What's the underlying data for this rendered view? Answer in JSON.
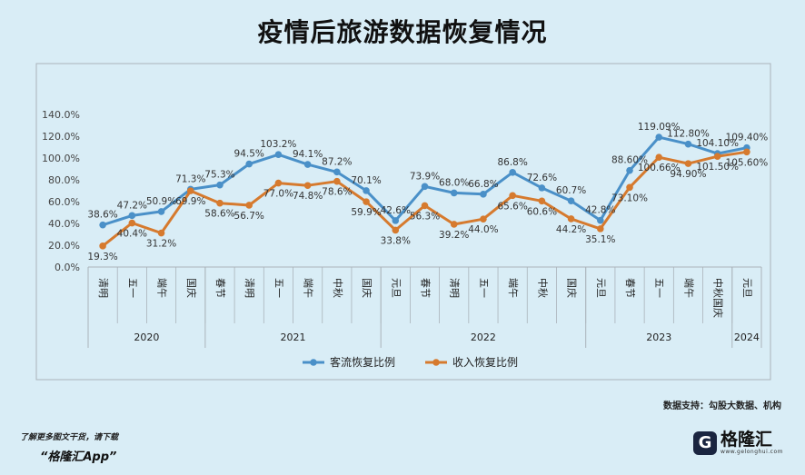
{
  "page": {
    "title": "疫情后旅游数据恢复情况"
  },
  "chart_data": {
    "type": "line",
    "title": "疫情后旅游数据恢复情况",
    "categories": [
      "清明",
      "五一",
      "端午",
      "国庆",
      "春节",
      "清明",
      "五一",
      "端午",
      "中秋",
      "国庆",
      "元旦",
      "春节",
      "清明",
      "五一",
      "端午",
      "中秋",
      "国庆",
      "元旦",
      "春节",
      "五一",
      "端午",
      "中秋国庆",
      "元旦"
    ],
    "years": [
      {
        "label": "2020",
        "start": 0,
        "end": 3
      },
      {
        "label": "2021",
        "start": 4,
        "end": 9
      },
      {
        "label": "2022",
        "start": 10,
        "end": 16
      },
      {
        "label": "2023",
        "start": 17,
        "end": 21
      },
      {
        "label": "2024",
        "start": 22,
        "end": 22
      }
    ],
    "ylim": [
      0,
      140
    ],
    "yticks": [
      "0.0%",
      "20.0%",
      "40.0%",
      "60.0%",
      "80.0%",
      "100.0%",
      "120.0%",
      "140.0%"
    ],
    "series": [
      {
        "name": "客流恢复比例",
        "color": "#4a90c8",
        "values": [
          38.6,
          47.2,
          50.9,
          71.3,
          75.3,
          94.5,
          103.2,
          94.1,
          87.2,
          70.1,
          42.6,
          73.9,
          68.0,
          66.8,
          86.8,
          72.6,
          60.7,
          42.8,
          88.6,
          119.09,
          112.8,
          104.1,
          109.4
        ],
        "labels": [
          "38.6%",
          "47.2%",
          "50.9%",
          "71.3%",
          "75.3%",
          "94.5%",
          "103.2%",
          "94.1%",
          "87.2%",
          "70.1%",
          "42.6%",
          "73.9%",
          "68.0%",
          "66.8%",
          "86.8%",
          "72.6%",
          "60.7%",
          "42.8%",
          "88.60%",
          "119.09%",
          "112.80%",
          "104.10%",
          "109.40%"
        ]
      },
      {
        "name": "收入恢复比例",
        "color": "#d67a2e",
        "values": [
          19.3,
          40.4,
          31.2,
          69.9,
          58.6,
          56.7,
          77.0,
          74.8,
          78.6,
          59.9,
          33.8,
          56.3,
          39.2,
          44.0,
          65.6,
          60.6,
          44.2,
          35.1,
          73.1,
          100.66,
          94.9,
          101.5,
          105.6
        ],
        "labels": [
          "19.3%",
          "40.4%",
          "31.2%",
          "69.9%",
          "58.6%",
          "56.7%",
          "77.0%",
          "74.8%",
          "78.6%",
          "59.9%",
          "33.8%",
          "56.3%",
          "39.2%",
          "44.0%",
          "65.6%",
          "60.6%",
          "44.2%",
          "35.1%",
          "73.10%",
          "100.66%",
          "94.90%",
          "101.50%",
          "105.60%"
        ]
      }
    ],
    "legend_position": "bottom",
    "grid": false
  },
  "credit": "数据支持：勾股大数据、机构",
  "footer": {
    "note": "了解更多图文干货，请下载",
    "app": "“格隆汇App”"
  },
  "brand": {
    "mark": "G",
    "name": "格隆汇",
    "url": "www.gelonghui.com"
  },
  "colors": {
    "background": "#d9edf6",
    "frame": "#aab3ba",
    "axis_text": "#444444"
  }
}
